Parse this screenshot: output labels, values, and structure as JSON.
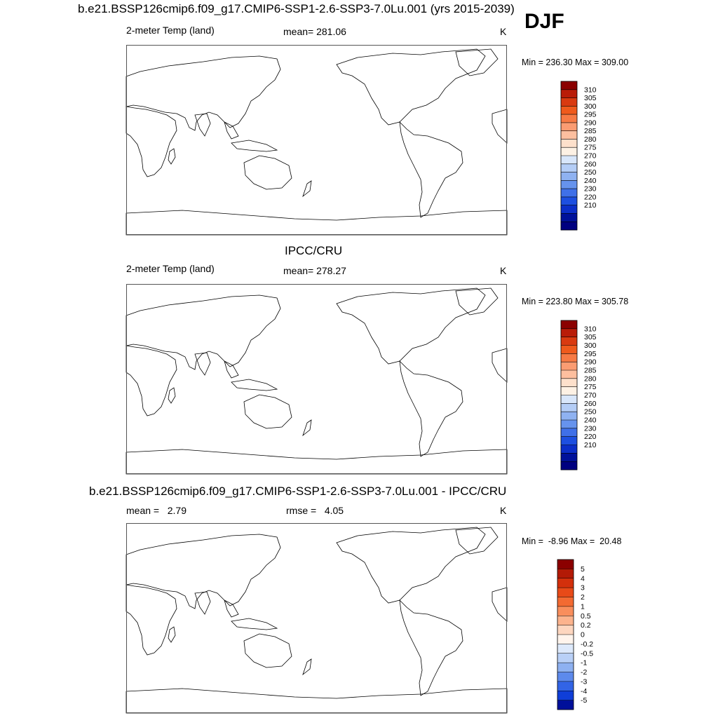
{
  "season": "DJF",
  "chart_data": [
    {
      "type": "heatmap",
      "title": "b.e21.BSSP126cmip6.f09_g17.CMIP6-SSP1-2.6-SSP3-7.0Lu.001 (yrs 2015-2039)",
      "variable": "2-meter Temp (land)",
      "stat_text": "mean= 281.06",
      "mean": 281.06,
      "units": "K",
      "minmax_text": "Min = 236.30 Max = 309.00",
      "min": 236.3,
      "max": 309.0,
      "colorbar_labels": [
        "310",
        "305",
        "300",
        "295",
        "290",
        "285",
        "280",
        "275",
        "270",
        "260",
        "250",
        "240",
        "230",
        "220",
        "210"
      ],
      "colorbar_colors": [
        "#8b0000",
        "#b91c08",
        "#d93a10",
        "#ef5a1c",
        "#f77a44",
        "#fb9c72",
        "#fdbf9f",
        "#fde0cb",
        "#fdf1e4",
        "#d8e6fa",
        "#b4cdf6",
        "#8fb2f1",
        "#6693ed",
        "#3f70e8",
        "#1d4fe0",
        "#0b2ec8",
        "#00119a",
        "#000080"
      ],
      "gradient_colors": [
        "#0030d0",
        "#2f63e6",
        "#5b8cee",
        "#8fb4f4",
        "#c2d6fa",
        "#e9efff",
        "#fbe3d2",
        "#f7b496",
        "#f08457",
        "#e65628",
        "#d93b12",
        "#c62c0a",
        "#a31f05"
      ]
    },
    {
      "type": "heatmap",
      "title": "IPCC/CRU",
      "variable": "2-meter Temp (land)",
      "stat_text": "mean= 278.27",
      "mean": 278.27,
      "units": "K",
      "minmax_text": "Min = 223.80 Max = 305.78",
      "min": 223.8,
      "max": 305.78,
      "colorbar_labels": [
        "310",
        "305",
        "300",
        "295",
        "290",
        "285",
        "280",
        "275",
        "270",
        "260",
        "250",
        "240",
        "230",
        "220",
        "210"
      ],
      "colorbar_colors": [
        "#8b0000",
        "#b91c08",
        "#d93a10",
        "#ef5a1c",
        "#f77a44",
        "#fb9c72",
        "#fdbf9f",
        "#fde0cb",
        "#fdf1e4",
        "#d8e6fa",
        "#b4cdf6",
        "#8fb2f1",
        "#6693ed",
        "#3f70e8",
        "#1d4fe0",
        "#0b2ec8",
        "#00119a",
        "#000080"
      ],
      "gradient_colors": [
        "#1e4fe0",
        "#3e6fea",
        "#6a96f0",
        "#a7c5f7",
        "#dde8fd",
        "#fbe6d6",
        "#f7ae8e",
        "#f07a48",
        "#e8572a",
        "#e24e22",
        "#dd4a1e"
      ]
    },
    {
      "type": "heatmap",
      "title": "b.e21.BSSP126cmip6.f09_g17.CMIP6-SSP1-2.6-SSP3-7.0Lu.001 - IPCC/CRU",
      "stat_text": "mean =   2.79",
      "mean": 2.79,
      "stat2_text": "rmse =   4.05",
      "rmse": 4.05,
      "units": "K",
      "minmax_text": "Min =  -8.96 Max =  20.48",
      "min": -8.96,
      "max": 20.48,
      "colorbar_labels": [
        "5",
        "4",
        "3",
        "2",
        "1",
        "0.5",
        "0.2",
        "0",
        "-0.2",
        "-0.5",
        "-1",
        "-2",
        "-3",
        "-4",
        "-5"
      ],
      "colorbar_colors": [
        "#8b0000",
        "#b31a06",
        "#d3300c",
        "#e84a18",
        "#f36a32",
        "#f98e5c",
        "#fcb38d",
        "#fdd6bf",
        "#fff4ec",
        "#dde9fb",
        "#b9d0f7",
        "#8eb1f1",
        "#5d8aec",
        "#3264e6",
        "#0f3ed8",
        "#00109a"
      ],
      "gradient_colors": [
        "#a31600",
        "#c22a08",
        "#d9400f",
        "#e8531a",
        "#e35020",
        "#d23a10",
        "#b82008",
        "#9a1000",
        "#8b0000"
      ]
    }
  ]
}
